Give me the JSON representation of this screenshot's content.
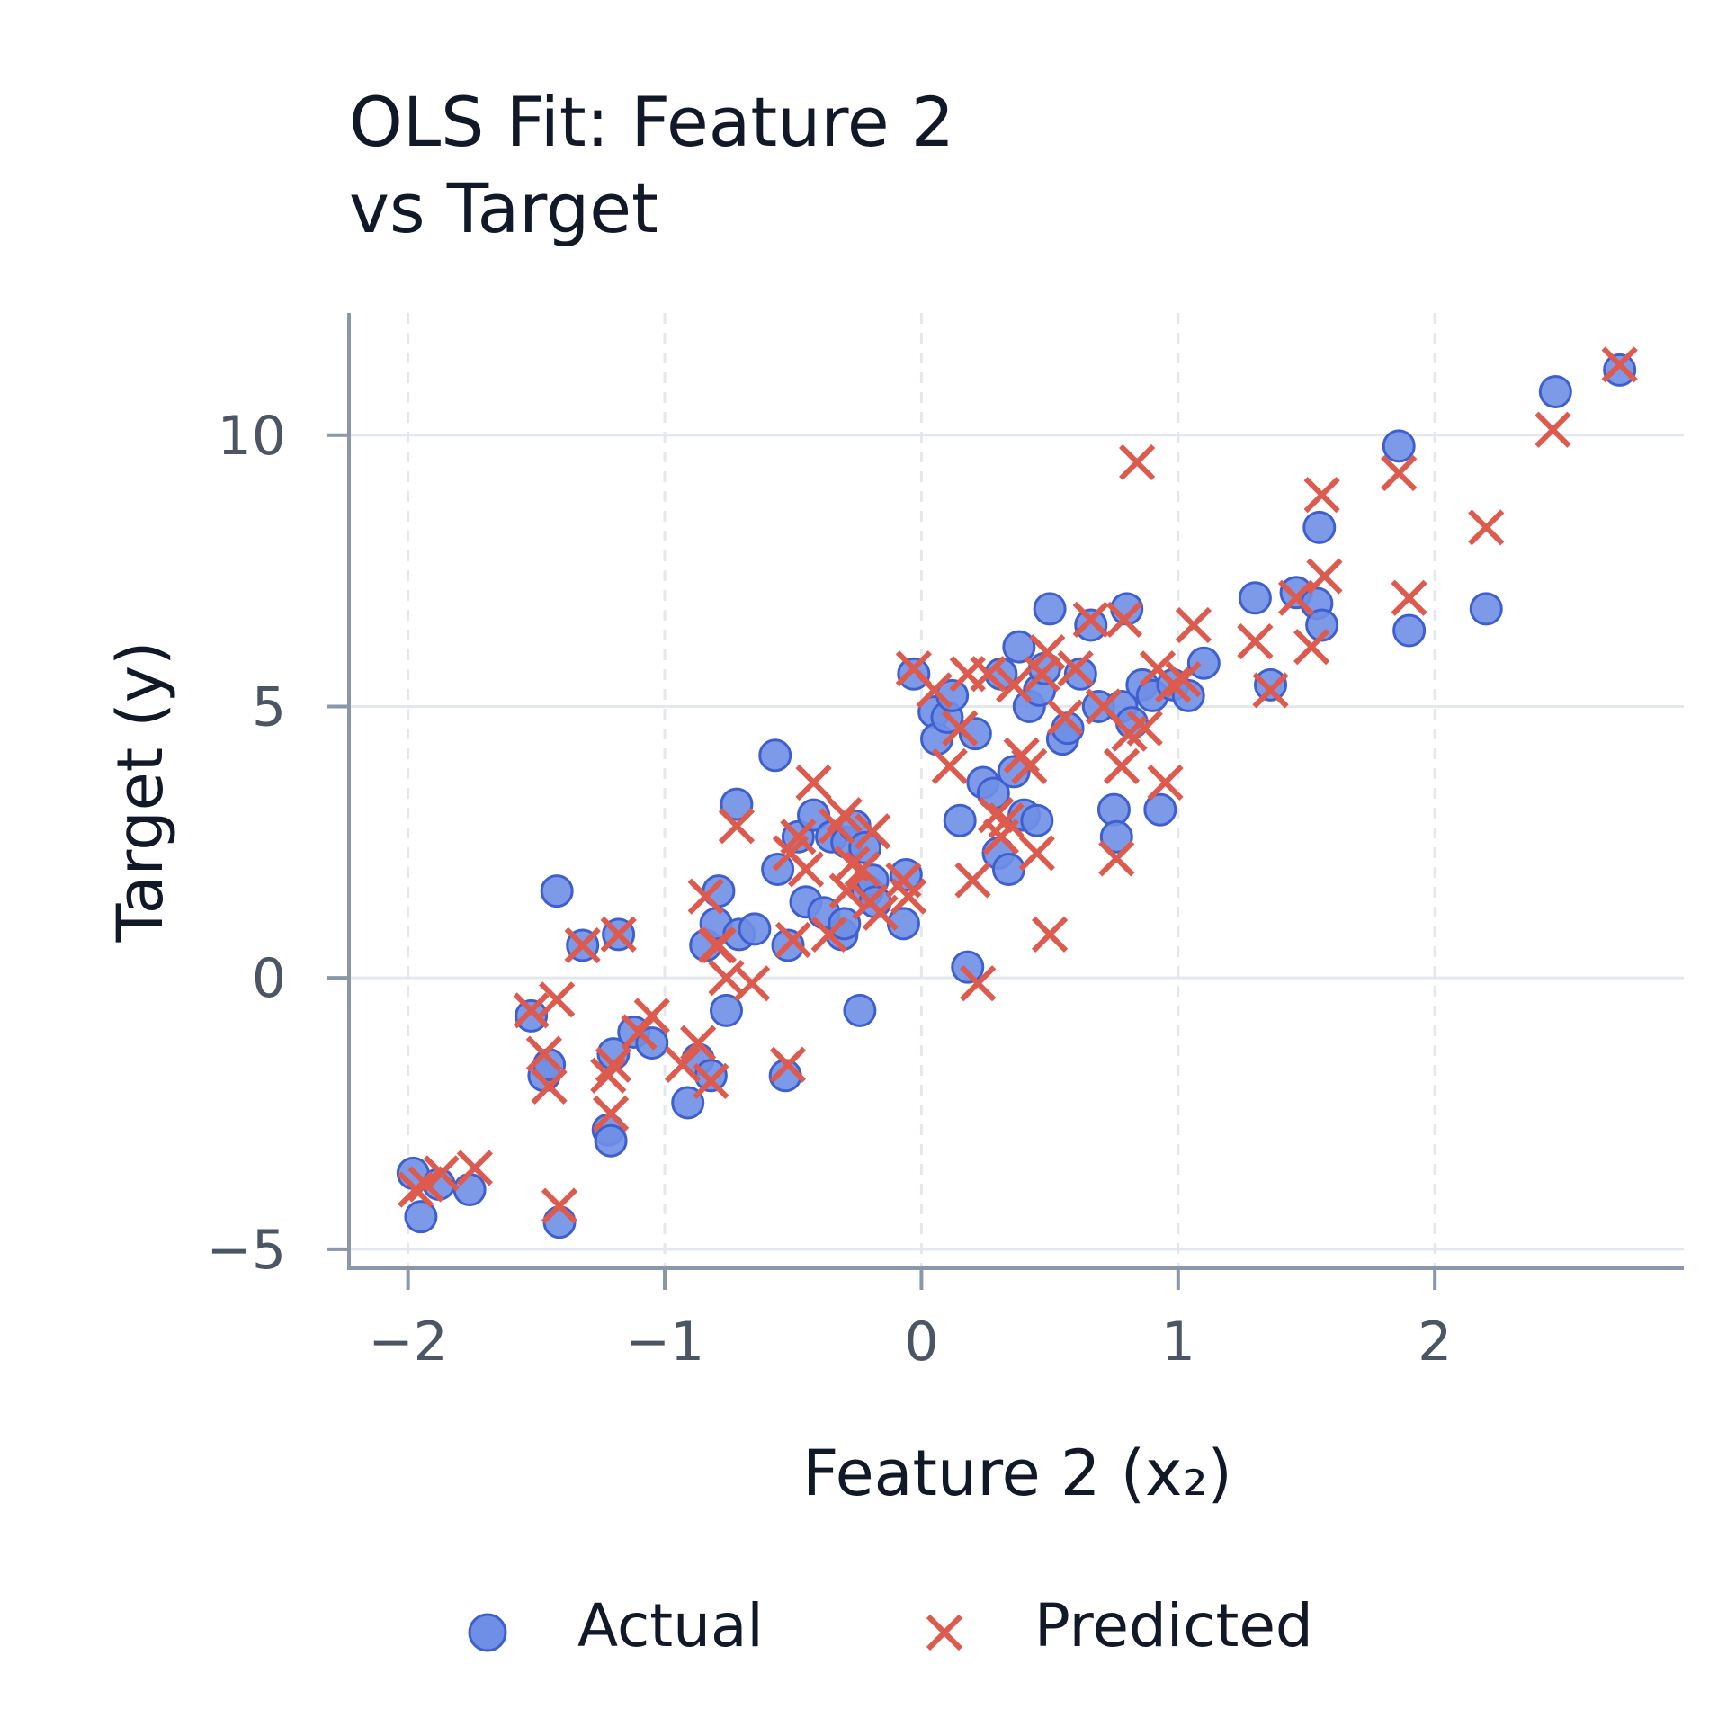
{
  "chart_data": {
    "type": "scatter",
    "title": [
      "OLS Fit: Feature 2",
      "vs Target"
    ],
    "xlabel": "Feature 2 (x₂)",
    "ylabel": "Target (y)",
    "xlim": [
      -2.23,
      2.97
    ],
    "ylim": [
      -5.35,
      12.25
    ],
    "x_ticks": [
      -2,
      -1,
      0,
      1,
      2
    ],
    "y_ticks": [
      -5,
      0,
      5,
      10
    ],
    "x_tick_labels": [
      "−2",
      "−1",
      "0",
      "1",
      "2"
    ],
    "y_tick_labels": [
      "−5",
      "0",
      "5",
      "10"
    ],
    "grid": true,
    "legend_position": "bottom",
    "colors": {
      "actual": "#6f8fe6",
      "actual_edge": "#3f5fcf",
      "predicted": "#dd5a4e",
      "axis": "#8a97a8",
      "grid": "#e3e8ee"
    },
    "series": [
      {
        "name": "Actual",
        "marker": "circle",
        "x": [
          -1.98,
          -1.95,
          -1.88,
          -1.76,
          -1.52,
          -1.47,
          -1.45,
          -1.42,
          -1.41,
          -1.32,
          -1.22,
          -1.21,
          -1.2,
          -1.18,
          -1.12,
          -1.05,
          -0.91,
          -0.87,
          -0.84,
          -0.82,
          -0.8,
          -0.79,
          -0.76,
          -0.72,
          -0.71,
          -0.65,
          -0.56,
          -0.57,
          -0.53,
          -0.52,
          -0.48,
          -0.45,
          -0.42,
          -0.38,
          -0.35,
          -0.31,
          -0.3,
          -0.29,
          -0.26,
          -0.24,
          -0.22,
          -0.21,
          -0.19,
          -0.18,
          -0.07,
          -0.06,
          -0.03,
          0.05,
          0.06,
          0.1,
          0.12,
          0.15,
          0.18,
          0.21,
          0.24,
          0.28,
          0.3,
          0.31,
          0.34,
          0.36,
          0.38,
          0.4,
          0.42,
          0.45,
          0.46,
          0.48,
          0.5,
          0.55,
          0.57,
          0.62,
          0.66,
          0.69,
          0.75,
          0.76,
          0.78,
          0.8,
          0.82,
          0.86,
          0.9,
          0.93,
          0.98,
          1.04,
          1.1,
          1.3,
          1.36,
          1.46,
          1.54,
          1.56,
          1.55,
          1.86,
          1.9,
          2.2,
          2.47,
          2.72
        ],
        "y": [
          -3.6,
          -4.4,
          -3.8,
          -3.9,
          -0.7,
          -1.8,
          -1.6,
          1.6,
          -4.5,
          0.6,
          -2.8,
          -3.0,
          -1.4,
          0.8,
          -1.0,
          -1.2,
          -2.3,
          -1.5,
          0.6,
          -1.8,
          1.0,
          1.6,
          -0.6,
          3.2,
          0.8,
          0.9,
          2.0,
          4.1,
          -1.8,
          0.6,
          2.6,
          1.4,
          3.0,
          1.2,
          2.6,
          0.8,
          1.0,
          2.5,
          2.8,
          -0.6,
          2.4,
          1.6,
          1.8,
          1.4,
          1.0,
          1.9,
          5.6,
          4.9,
          4.4,
          4.8,
          5.2,
          2.9,
          0.2,
          4.5,
          3.6,
          3.4,
          2.3,
          5.6,
          2.0,
          3.8,
          6.1,
          3.0,
          5.0,
          2.9,
          5.3,
          5.7,
          6.8,
          4.4,
          4.6,
          5.6,
          6.5,
          5.0,
          3.1,
          2.6,
          5.0,
          6.8,
          4.7,
          5.4,
          5.2,
          3.1,
          5.4,
          5.2,
          5.8,
          7.0,
          5.4,
          7.1,
          6.9,
          6.5,
          8.3,
          9.8,
          6.4,
          6.8,
          10.8,
          11.2
        ]
      },
      {
        "name": "Predicted",
        "marker": "x",
        "x": [
          -1.97,
          -1.93,
          -1.87,
          -1.74,
          -1.52,
          -1.47,
          -1.45,
          -1.42,
          -1.41,
          -1.32,
          -1.22,
          -1.21,
          -1.2,
          -1.18,
          -1.1,
          -1.05,
          -0.93,
          -0.87,
          -0.84,
          -0.82,
          -0.8,
          -0.79,
          -0.76,
          -0.72,
          -0.66,
          -0.52,
          -0.51,
          -0.5,
          -0.48,
          -0.45,
          -0.42,
          -0.36,
          -0.33,
          -0.3,
          -0.29,
          -0.27,
          -0.23,
          -0.2,
          -0.19,
          -0.16,
          -0.07,
          -0.05,
          -0.03,
          0.05,
          0.11,
          0.15,
          0.18,
          0.2,
          0.22,
          0.26,
          0.29,
          0.31,
          0.33,
          0.36,
          0.39,
          0.42,
          0.45,
          0.47,
          0.49,
          0.5,
          0.56,
          0.6,
          0.66,
          0.71,
          0.76,
          0.78,
          0.79,
          0.81,
          0.84,
          0.87,
          0.92,
          0.95,
          0.98,
          1.02,
          1.06,
          1.3,
          1.36,
          1.46,
          1.52,
          1.56,
          1.57,
          1.86,
          1.9,
          2.2,
          2.46,
          2.72
        ],
        "y": [
          -3.9,
          -3.8,
          -3.6,
          -3.5,
          -0.6,
          -1.4,
          -2.0,
          -0.4,
          -4.2,
          0.6,
          -1.8,
          -2.5,
          -1.6,
          0.8,
          -1.0,
          -0.7,
          -1.6,
          -1.2,
          1.5,
          -1.9,
          0.6,
          0.6,
          0.0,
          2.8,
          -0.1,
          -1.6,
          2.3,
          0.7,
          2.6,
          2.0,
          3.6,
          0.8,
          2.8,
          3.0,
          1.6,
          2.1,
          2.0,
          1.4,
          2.7,
          1.2,
          1.8,
          1.5,
          5.7,
          5.3,
          3.9,
          4.6,
          5.6,
          1.8,
          -0.1,
          5.6,
          3.0,
          2.6,
          2.9,
          5.4,
          4.1,
          3.9,
          2.3,
          5.6,
          6.0,
          0.8,
          4.8,
          5.7,
          6.6,
          5.0,
          2.2,
          3.9,
          6.6,
          4.5,
          9.5,
          4.6,
          5.7,
          3.6,
          5.4,
          5.5,
          6.5,
          6.2,
          5.3,
          7.0,
          6.1,
          8.9,
          7.4,
          9.3,
          7.0,
          8.3,
          10.1,
          11.3
        ]
      }
    ],
    "legend": [
      {
        "label": "Actual",
        "marker": "circle"
      },
      {
        "label": "Predicted",
        "marker": "x"
      }
    ]
  }
}
